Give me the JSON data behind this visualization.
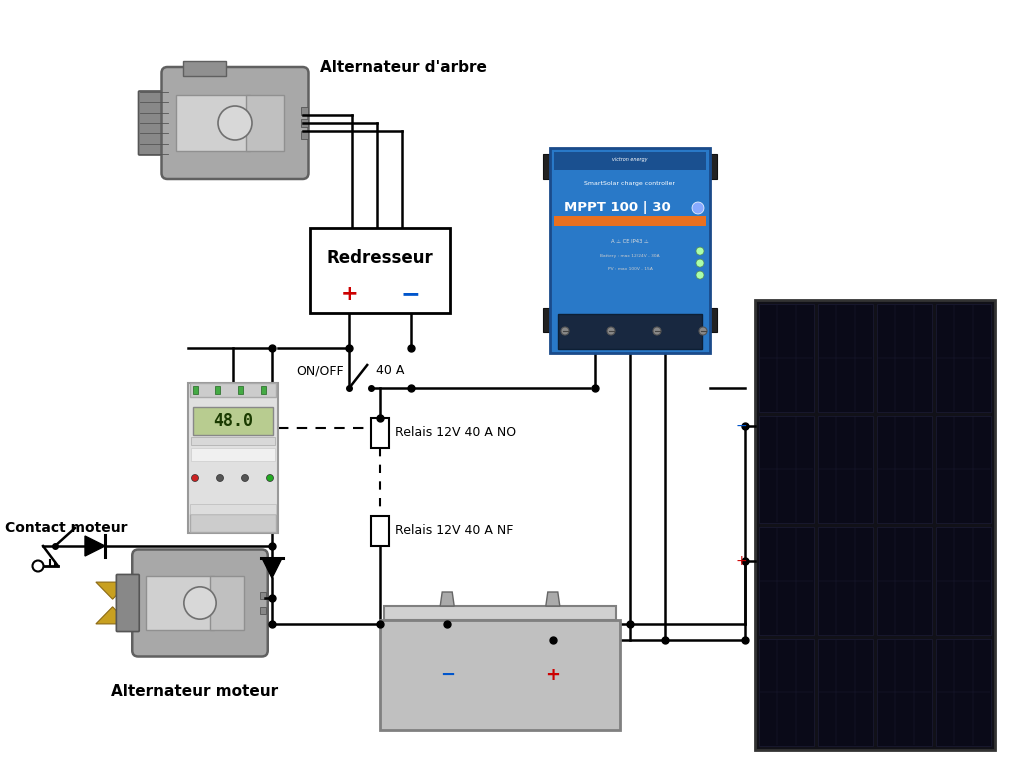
{
  "bg_color": "#ffffff",
  "line_color": "#000000",
  "line_width": 1.8,
  "labels": {
    "alternateur_arbre": "Alternateur d'arbre",
    "alternateur_moteur": "Alternateur moteur",
    "redresseur": "Redresseur",
    "contact_moteur": "Contact moteur",
    "on_off": "ON/OFF",
    "ampere": "40 A",
    "relais_no": "Relais 12V 40 A NO",
    "relais_nf": "Relais 12V 40 A NF"
  },
  "colors": {
    "blue_victron": "#2979C8",
    "blue_victron_dark": "#1a5c9e",
    "blue_victron_tab": "#1a3a5a",
    "orange_victron": "#E87020",
    "solar_dark": "#151520",
    "solar_cell": "#0d0d1a",
    "solar_line": "#282840",
    "battery_top": "#c8c8c8",
    "battery_body": "#b8b8b8",
    "battery_side": "#a0a0a0",
    "timer_body": "#e8e8e8",
    "timer_lcd": "#b8cc90",
    "timer_red": "#cc2222",
    "timer_green": "#22aa22",
    "motor_body": "#909090",
    "motor_light": "#c8c8c8",
    "motor_dark": "#606060",
    "motor_mid": "#a8a8a8",
    "fan_yellow": "#c8a020",
    "plus_color": "#cc0000",
    "minus_color": "#0055cc"
  },
  "layout": {
    "fig_w": 10.24,
    "fig_h": 7.68,
    "dpi": 100,
    "xmin": 0,
    "xmax": 10.24,
    "ymin": 0,
    "ymax": 7.68
  }
}
